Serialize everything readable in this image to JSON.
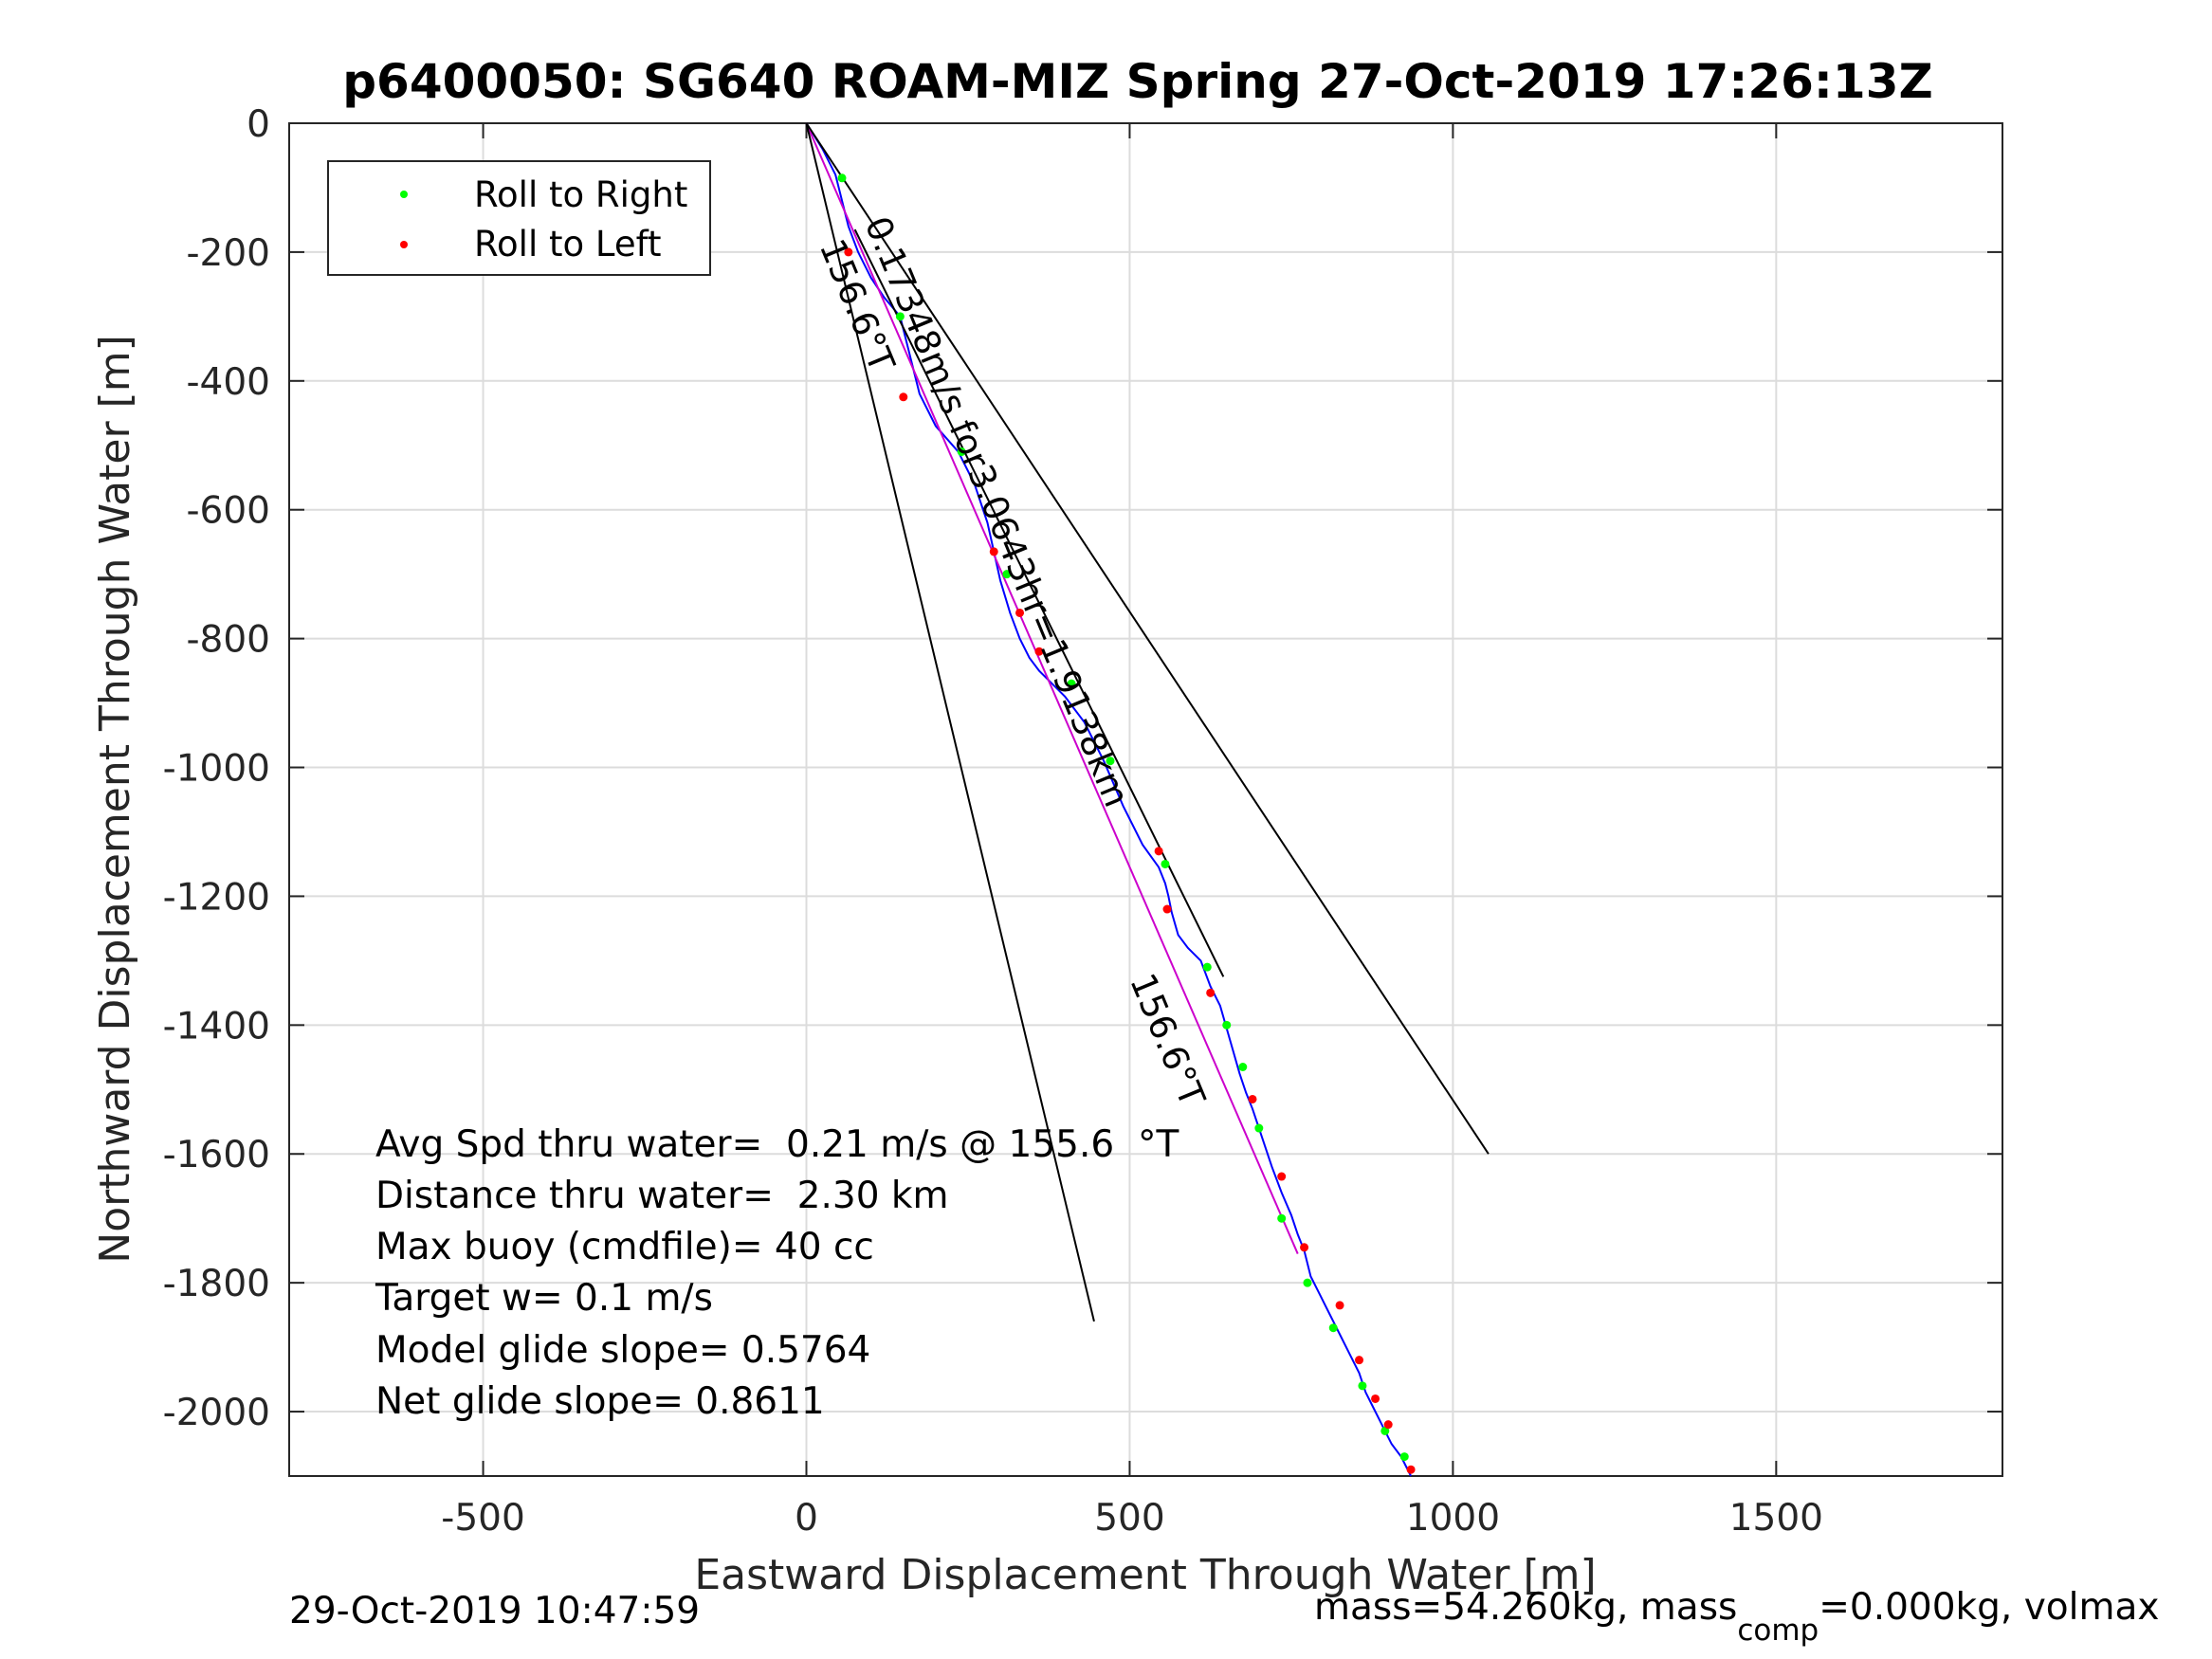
{
  "chart_data": {
    "type": "line",
    "title": "p6400050: SG640 ROAM-MIZ Spring 27-Oct-2019 17:26:13Z",
    "xlabel": "Eastward Displacement Through Water [m]",
    "ylabel": "Northward Displacement Through Water [m]",
    "xlim": [
      -800,
      1850
    ],
    "ylim": [
      -2100,
      0
    ],
    "xticks": [
      -500,
      0,
      500,
      1000,
      1500
    ],
    "yticks": [
      0,
      -200,
      -400,
      -600,
      -800,
      -1000,
      -1200,
      -1400,
      -1600,
      -1800,
      -2000
    ],
    "grid": true,
    "legend": {
      "placement": "top-left",
      "entries": [
        {
          "label": "Roll to Right",
          "color": "#00ff00"
        },
        {
          "label": "Roll to Left",
          "color": "#ff0000"
        }
      ]
    },
    "series": [
      {
        "name": "track",
        "color": "#0000ff",
        "x": [
          0,
          25,
          45,
          55,
          65,
          80,
          100,
          120,
          145,
          160,
          175,
          200,
          235,
          260,
          280,
          290,
          300,
          315,
          330,
          345,
          360,
          380,
          400,
          430,
          460,
          490,
          520,
          545,
          555,
          560,
          565,
          575,
          590,
          610,
          625,
          640,
          650,
          660,
          670,
          680,
          690,
          700,
          710,
          720,
          735,
          750,
          760,
          770,
          780,
          795,
          810,
          825,
          840,
          855,
          865,
          875,
          885,
          895,
          905,
          920,
          935
        ],
        "y": [
          0,
          -40,
          -80,
          -120,
          -160,
          -200,
          -240,
          -270,
          -300,
          -360,
          -420,
          -470,
          -510,
          -560,
          -620,
          -665,
          -710,
          -760,
          -800,
          -830,
          -850,
          -870,
          -890,
          -930,
          -990,
          -1060,
          -1120,
          -1155,
          -1180,
          -1200,
          -1225,
          -1260,
          -1280,
          -1300,
          -1340,
          -1370,
          -1405,
          -1440,
          -1475,
          -1505,
          -1530,
          -1560,
          -1590,
          -1620,
          -1660,
          -1695,
          -1725,
          -1750,
          -1790,
          -1820,
          -1850,
          -1880,
          -1910,
          -1940,
          -1970,
          -1990,
          -2010,
          -2030,
          -2050,
          -2070,
          -2100
        ]
      },
      {
        "name": "net",
        "color": "#cc00cc",
        "x": [
          0,
          760
        ],
        "y": [
          0,
          -1755
        ]
      },
      {
        "name": "",
        "color": "#000000",
        "x": [
          0,
          445
        ],
        "y": [
          0,
          -1860
        ]
      },
      {
        "name": "",
        "color": "#000000",
        "x": [
          0,
          1055
        ],
        "y": [
          0,
          -1600
        ]
      },
      {
        "name": "",
        "color": "#000000",
        "x": [
          75,
          645
        ],
        "y": [
          -165,
          -1325
        ]
      }
    ],
    "roll_right_points": {
      "color": "#00ff00",
      "x": [
        55,
        145,
        240,
        310,
        410,
        470,
        555,
        620,
        650,
        675,
        700,
        735,
        775,
        815,
        860,
        895,
        925
      ],
      "y": [
        -85,
        -300,
        -510,
        -700,
        -870,
        -990,
        -1150,
        -1310,
        -1400,
        -1465,
        -1560,
        -1700,
        -1800,
        -1870,
        -1960,
        -2030,
        -2070
      ]
    },
    "roll_left_points": {
      "color": "#ff0000",
      "x": [
        65,
        150,
        290,
        330,
        360,
        545,
        558,
        625,
        690,
        735,
        770,
        825,
        855,
        880,
        900,
        935
      ],
      "y": [
        -200,
        -425,
        -665,
        -760,
        -820,
        -1130,
        -1220,
        -1350,
        -1515,
        -1635,
        -1745,
        -1835,
        -1920,
        -1980,
        -2020,
        -2090
      ]
    },
    "annotations": [
      {
        "text": "0.17348m/s for3.0643hr=1.9138km",
        "x": 90,
        "y": -155,
        "angle": 67.5
      },
      {
        "text": "156.6°T",
        "x": 20,
        "y": -190,
        "angle": 67.5
      },
      {
        "text": "156.6°T",
        "x": 500,
        "y": -1330,
        "angle": 67.5
      }
    ],
    "stats": [
      "Avg Spd thru water=  0.21 m/s @ 155.6  °T",
      "Distance thru water=  2.30 km",
      "Max buoy (cmdfile)= 40 cc",
      "Target w= 0.1 m/s",
      "Model glide slope= 0.5764",
      "Net glide slope= 0.8611"
    ],
    "footer_left": "29-Oct-2019 10:47:59",
    "footer_right": {
      "pre": "mass=54.260kg, mass",
      "sub": "comp",
      "post": "=0.000kg, volmax"
    }
  }
}
